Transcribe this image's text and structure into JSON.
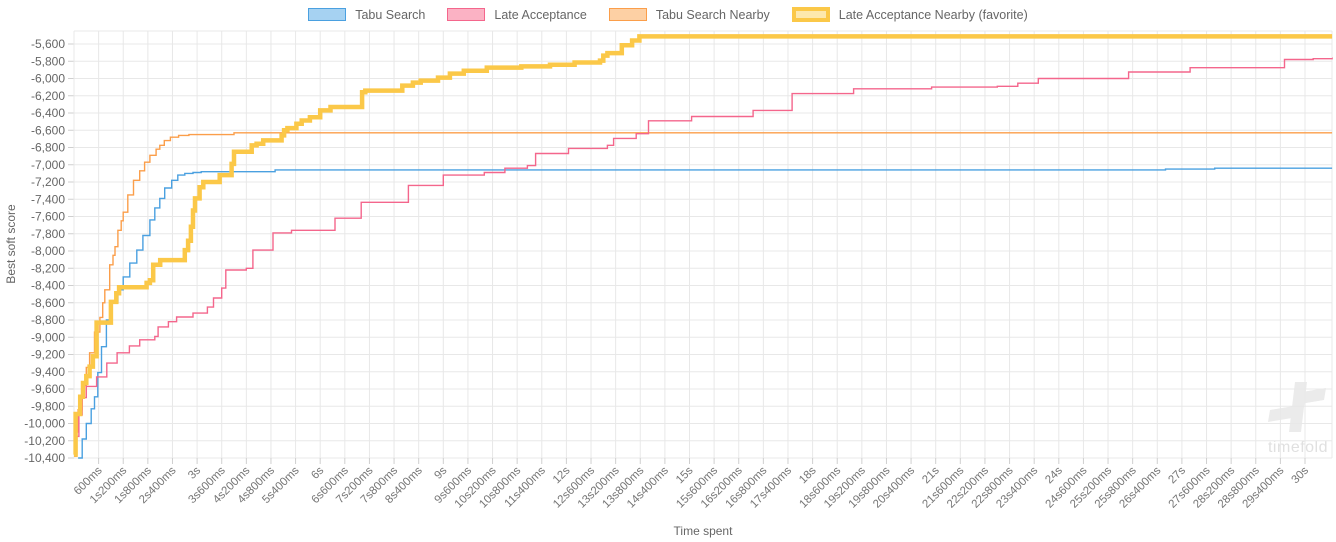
{
  "watermark": {
    "text": "timefold"
  },
  "chart_data": {
    "type": "line",
    "step": true,
    "title": "",
    "xlabel": "Time spent",
    "ylabel": "Best soft score",
    "legend_position": "top-center",
    "grid": true,
    "xlim_seconds": [
      0,
      30.66
    ],
    "ylim": [
      -10400,
      -5440
    ],
    "y_ticks": [
      {
        "value": -5600,
        "label": "-5,600"
      },
      {
        "value": -5800,
        "label": "-5,800"
      },
      {
        "value": -6000,
        "label": "-6,000"
      },
      {
        "value": -6200,
        "label": "-6,200"
      },
      {
        "value": -6400,
        "label": "-6,400"
      },
      {
        "value": -6600,
        "label": "-6,600"
      },
      {
        "value": -6800,
        "label": "-6,800"
      },
      {
        "value": -7000,
        "label": "-7,000"
      },
      {
        "value": -7200,
        "label": "-7,200"
      },
      {
        "value": -7400,
        "label": "-7,400"
      },
      {
        "value": -7600,
        "label": "-7,600"
      },
      {
        "value": -7800,
        "label": "-7,800"
      },
      {
        "value": -8000,
        "label": "-8,000"
      },
      {
        "value": -8200,
        "label": "-8,200"
      },
      {
        "value": -8400,
        "label": "-8,400"
      },
      {
        "value": -8600,
        "label": "-8,600"
      },
      {
        "value": -8800,
        "label": "-8,800"
      },
      {
        "value": -9000,
        "label": "-9,000"
      },
      {
        "value": -9200,
        "label": "-9,200"
      },
      {
        "value": -9400,
        "label": "-9,400"
      },
      {
        "value": -9600,
        "label": "-9,600"
      },
      {
        "value": -9800,
        "label": "-9,800"
      },
      {
        "value": -10000,
        "label": "-10,000"
      },
      {
        "value": -10200,
        "label": "-10,200"
      },
      {
        "value": -10400,
        "label": "-10,400"
      }
    ],
    "x_ticks": [
      {
        "seconds": 0.6,
        "label": "600ms"
      },
      {
        "seconds": 1.2,
        "label": "1s200ms"
      },
      {
        "seconds": 1.8,
        "label": "1s800ms"
      },
      {
        "seconds": 2.4,
        "label": "2s400ms"
      },
      {
        "seconds": 3.0,
        "label": "3s"
      },
      {
        "seconds": 3.6,
        "label": "3s600ms"
      },
      {
        "seconds": 4.2,
        "label": "4s200ms"
      },
      {
        "seconds": 4.8,
        "label": "4s800ms"
      },
      {
        "seconds": 5.4,
        "label": "5s400ms"
      },
      {
        "seconds": 6.0,
        "label": "6s"
      },
      {
        "seconds": 6.6,
        "label": "6s600ms"
      },
      {
        "seconds": 7.2,
        "label": "7s200ms"
      },
      {
        "seconds": 7.8,
        "label": "7s800ms"
      },
      {
        "seconds": 8.4,
        "label": "8s400ms"
      },
      {
        "seconds": 9.0,
        "label": "9s"
      },
      {
        "seconds": 9.6,
        "label": "9s600ms"
      },
      {
        "seconds": 10.2,
        "label": "10s200ms"
      },
      {
        "seconds": 10.8,
        "label": "10s800ms"
      },
      {
        "seconds": 11.4,
        "label": "11s400ms"
      },
      {
        "seconds": 12.0,
        "label": "12s"
      },
      {
        "seconds": 12.6,
        "label": "12s600ms"
      },
      {
        "seconds": 13.2,
        "label": "13s200ms"
      },
      {
        "seconds": 13.8,
        "label": "13s800ms"
      },
      {
        "seconds": 14.4,
        "label": "14s400ms"
      },
      {
        "seconds": 15.0,
        "label": "15s"
      },
      {
        "seconds": 15.6,
        "label": "15s600ms"
      },
      {
        "seconds": 16.2,
        "label": "16s200ms"
      },
      {
        "seconds": 16.8,
        "label": "16s800ms"
      },
      {
        "seconds": 17.4,
        "label": "17s400ms"
      },
      {
        "seconds": 18.0,
        "label": "18s"
      },
      {
        "seconds": 18.6,
        "label": "18s600ms"
      },
      {
        "seconds": 19.2,
        "label": "19s200ms"
      },
      {
        "seconds": 19.8,
        "label": "19s800ms"
      },
      {
        "seconds": 20.4,
        "label": "20s400ms"
      },
      {
        "seconds": 21.0,
        "label": "21s"
      },
      {
        "seconds": 21.6,
        "label": "21s600ms"
      },
      {
        "seconds": 22.2,
        "label": "22s200ms"
      },
      {
        "seconds": 22.8,
        "label": "22s800ms"
      },
      {
        "seconds": 23.4,
        "label": "23s400ms"
      },
      {
        "seconds": 24.0,
        "label": "24s"
      },
      {
        "seconds": 24.6,
        "label": "24s600ms"
      },
      {
        "seconds": 25.2,
        "label": "25s200ms"
      },
      {
        "seconds": 25.8,
        "label": "25s800ms"
      },
      {
        "seconds": 26.4,
        "label": "26s400ms"
      },
      {
        "seconds": 27.0,
        "label": "27s"
      },
      {
        "seconds": 27.6,
        "label": "27s600ms"
      },
      {
        "seconds": 28.2,
        "label": "28s200ms"
      },
      {
        "seconds": 28.8,
        "label": "28s800ms"
      },
      {
        "seconds": 29.4,
        "label": "29s400ms"
      },
      {
        "seconds": 30.0,
        "label": "30s"
      }
    ],
    "series": [
      {
        "name": "Tabu Search",
        "color": "#4aa0e0",
        "fill": "#a6d2f2",
        "line_width": 1.4,
        "z": 2,
        "points": [
          [
            0.1,
            -10400
          ],
          [
            0.2,
            -10180
          ],
          [
            0.3,
            -10000
          ],
          [
            0.42,
            -9830
          ],
          [
            0.5,
            -9690
          ],
          [
            0.58,
            -9410
          ],
          [
            0.67,
            -9110
          ],
          [
            0.79,
            -8800
          ],
          [
            0.92,
            -8590
          ],
          [
            1.07,
            -8450
          ],
          [
            1.2,
            -8300
          ],
          [
            1.36,
            -8140
          ],
          [
            1.53,
            -7990
          ],
          [
            1.68,
            -7820
          ],
          [
            1.85,
            -7640
          ],
          [
            1.97,
            -7500
          ],
          [
            2.09,
            -7390
          ],
          [
            2.21,
            -7270
          ],
          [
            2.38,
            -7180
          ],
          [
            2.53,
            -7120
          ],
          [
            2.7,
            -7100
          ],
          [
            2.9,
            -7090
          ],
          [
            3.1,
            -7080
          ],
          [
            4.9,
            -7060
          ],
          [
            26.6,
            -7050
          ],
          [
            27.8,
            -7040
          ],
          [
            30.66,
            -7040
          ]
        ]
      },
      {
        "name": "Late Acceptance",
        "color": "#f4668c",
        "fill": "#fbb2c4",
        "line_width": 1.4,
        "z": 3,
        "points": [
          [
            0,
            -10380
          ],
          [
            0.05,
            -10150
          ],
          [
            0.12,
            -9900
          ],
          [
            0.2,
            -9700
          ],
          [
            0.3,
            -9570
          ],
          [
            0.55,
            -9460
          ],
          [
            0.8,
            -9300
          ],
          [
            1.05,
            -9180
          ],
          [
            1.35,
            -9100
          ],
          [
            1.6,
            -9030
          ],
          [
            1.97,
            -8990
          ],
          [
            2.05,
            -8880
          ],
          [
            2.3,
            -8820
          ],
          [
            2.5,
            -8765
          ],
          [
            2.9,
            -8720
          ],
          [
            3.25,
            -8650
          ],
          [
            3.4,
            -8545
          ],
          [
            3.6,
            -8430
          ],
          [
            3.7,
            -8220
          ],
          [
            4.2,
            -8200
          ],
          [
            4.36,
            -7990
          ],
          [
            4.85,
            -7790
          ],
          [
            5.3,
            -7760
          ],
          [
            6.36,
            -7620
          ],
          [
            7.0,
            -7435
          ],
          [
            8.15,
            -7240
          ],
          [
            9.0,
            -7120
          ],
          [
            10.0,
            -7090
          ],
          [
            10.5,
            -7040
          ],
          [
            11.05,
            -7010
          ],
          [
            11.25,
            -6870
          ],
          [
            12.05,
            -6810
          ],
          [
            13.0,
            -6775
          ],
          [
            13.15,
            -6695
          ],
          [
            13.7,
            -6640
          ],
          [
            14.0,
            -6490
          ],
          [
            15.05,
            -6440
          ],
          [
            16.55,
            -6370
          ],
          [
            17.5,
            -6175
          ],
          [
            19.0,
            -6120
          ],
          [
            20.9,
            -6100
          ],
          [
            22.5,
            -6090
          ],
          [
            23.0,
            -6055
          ],
          [
            23.5,
            -6000
          ],
          [
            25.7,
            -5925
          ],
          [
            27.2,
            -5875
          ],
          [
            29.5,
            -5780
          ],
          [
            30.2,
            -5770
          ],
          [
            30.66,
            -5765
          ]
        ]
      },
      {
        "name": "Tabu Search Nearby",
        "color": "#fb9e4a",
        "fill": "#fdd0a4",
        "line_width": 1.4,
        "z": 1,
        "points": [
          [
            0,
            -10380
          ],
          [
            0.05,
            -10100
          ],
          [
            0.1,
            -9840
          ],
          [
            0.2,
            -9560
          ],
          [
            0.3,
            -9350
          ],
          [
            0.38,
            -9180
          ],
          [
            0.5,
            -8940
          ],
          [
            0.63,
            -8770
          ],
          [
            0.7,
            -8600
          ],
          [
            0.75,
            -8450
          ],
          [
            0.87,
            -8160
          ],
          [
            0.95,
            -8050
          ],
          [
            1.0,
            -7950
          ],
          [
            1.07,
            -7760
          ],
          [
            1.15,
            -7650
          ],
          [
            1.2,
            -7550
          ],
          [
            1.31,
            -7350
          ],
          [
            1.45,
            -7180
          ],
          [
            1.6,
            -7070
          ],
          [
            1.72,
            -6970
          ],
          [
            1.85,
            -6890
          ],
          [
            2.0,
            -6820
          ],
          [
            2.09,
            -6775
          ],
          [
            2.2,
            -6720
          ],
          [
            2.35,
            -6680
          ],
          [
            2.55,
            -6660
          ],
          [
            2.8,
            -6650
          ],
          [
            3.9,
            -6630
          ],
          [
            30.66,
            -6630
          ]
        ]
      },
      {
        "name": "Late Acceptance Nearby (favorite)",
        "color": "#fbc848",
        "fill": "#fde8ad",
        "line_width": 4.5,
        "z": 4,
        "points": [
          [
            0,
            -10360
          ],
          [
            0.04,
            -9890
          ],
          [
            0.15,
            -9690
          ],
          [
            0.22,
            -9530
          ],
          [
            0.3,
            -9450
          ],
          [
            0.38,
            -9340
          ],
          [
            0.46,
            -9220
          ],
          [
            0.55,
            -8830
          ],
          [
            0.9,
            -8590
          ],
          [
            1.03,
            -8490
          ],
          [
            1.1,
            -8420
          ],
          [
            1.77,
            -8370
          ],
          [
            1.85,
            -8340
          ],
          [
            1.93,
            -8160
          ],
          [
            2.1,
            -8105
          ],
          [
            2.7,
            -7990
          ],
          [
            2.78,
            -7880
          ],
          [
            2.85,
            -7720
          ],
          [
            2.9,
            -7530
          ],
          [
            2.95,
            -7390
          ],
          [
            3.06,
            -7260
          ],
          [
            3.15,
            -7200
          ],
          [
            3.55,
            -7120
          ],
          [
            3.84,
            -6990
          ],
          [
            3.9,
            -6850
          ],
          [
            4.33,
            -6776
          ],
          [
            4.45,
            -6757
          ],
          [
            4.61,
            -6718
          ],
          [
            5.06,
            -6660
          ],
          [
            5.12,
            -6600
          ],
          [
            5.2,
            -6575
          ],
          [
            5.42,
            -6525
          ],
          [
            5.55,
            -6487
          ],
          [
            5.75,
            -6449
          ],
          [
            6.0,
            -6370
          ],
          [
            6.25,
            -6330
          ],
          [
            7.02,
            -6160
          ],
          [
            7.1,
            -6140
          ],
          [
            8.0,
            -6082
          ],
          [
            8.26,
            -6047
          ],
          [
            8.45,
            -6024
          ],
          [
            8.87,
            -5990
          ],
          [
            9.16,
            -5943
          ],
          [
            9.5,
            -5909
          ],
          [
            10.06,
            -5874
          ],
          [
            10.9,
            -5860
          ],
          [
            11.6,
            -5840
          ],
          [
            12.2,
            -5815
          ],
          [
            12.82,
            -5793
          ],
          [
            12.9,
            -5735
          ],
          [
            13.0,
            -5705
          ],
          [
            13.35,
            -5615
          ],
          [
            13.6,
            -5560
          ],
          [
            13.78,
            -5512
          ],
          [
            30.66,
            -5512
          ]
        ]
      }
    ]
  }
}
